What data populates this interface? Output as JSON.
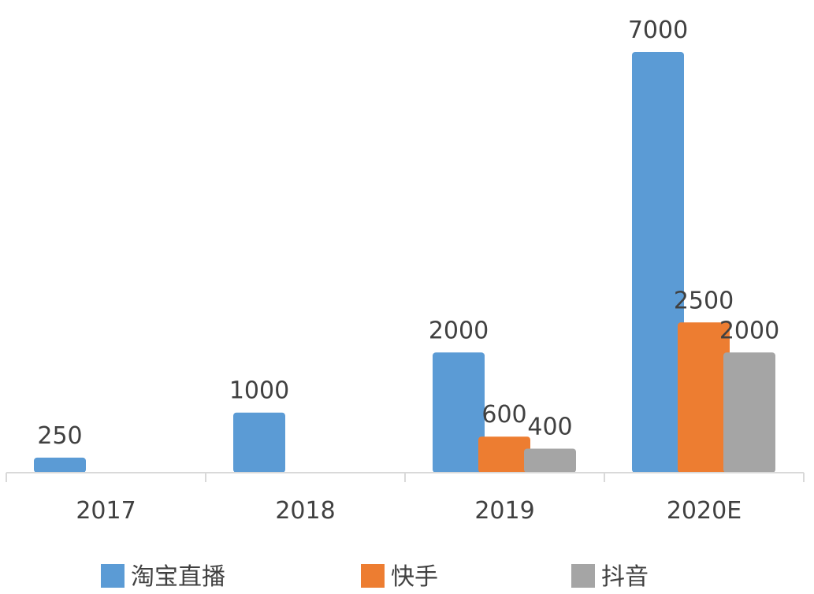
{
  "chart_data": {
    "type": "bar",
    "categories": [
      "2017",
      "2018",
      "2019",
      "2020E"
    ],
    "series": [
      {
        "name": "淘宝直播",
        "color": "#5B9BD5",
        "values": [
          250,
          1000,
          2000,
          7000
        ]
      },
      {
        "name": "快手",
        "color": "#ED7D31",
        "values": [
          null,
          null,
          600,
          2500
        ]
      },
      {
        "name": "抖音",
        "color": "#A5A5A5",
        "values": [
          null,
          null,
          400,
          2000
        ]
      }
    ],
    "ylim": [
      0,
      7000
    ],
    "grid": false,
    "legend_position": "bottom"
  }
}
